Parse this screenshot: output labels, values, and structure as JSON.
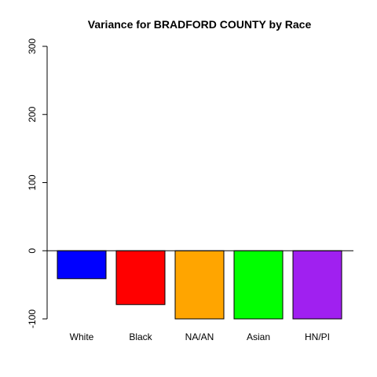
{
  "chart_data": {
    "type": "bar",
    "title": "Variance for BRADFORD COUNTY by Race",
    "xlabel": "",
    "ylabel": "",
    "categories": [
      "White",
      "Black",
      "NA/AN",
      "Asian",
      "HN/PI"
    ],
    "values": [
      -41,
      -79,
      -100,
      -100,
      -100
    ],
    "colors": [
      "#0000ff",
      "#ff0000",
      "#ffa500",
      "#00ff00",
      "#a020f0"
    ],
    "ylim": [
      -100,
      300
    ],
    "yticks": [
      -100,
      0,
      100,
      200,
      300
    ],
    "baseline": 0,
    "grid": false,
    "legend": "none"
  }
}
